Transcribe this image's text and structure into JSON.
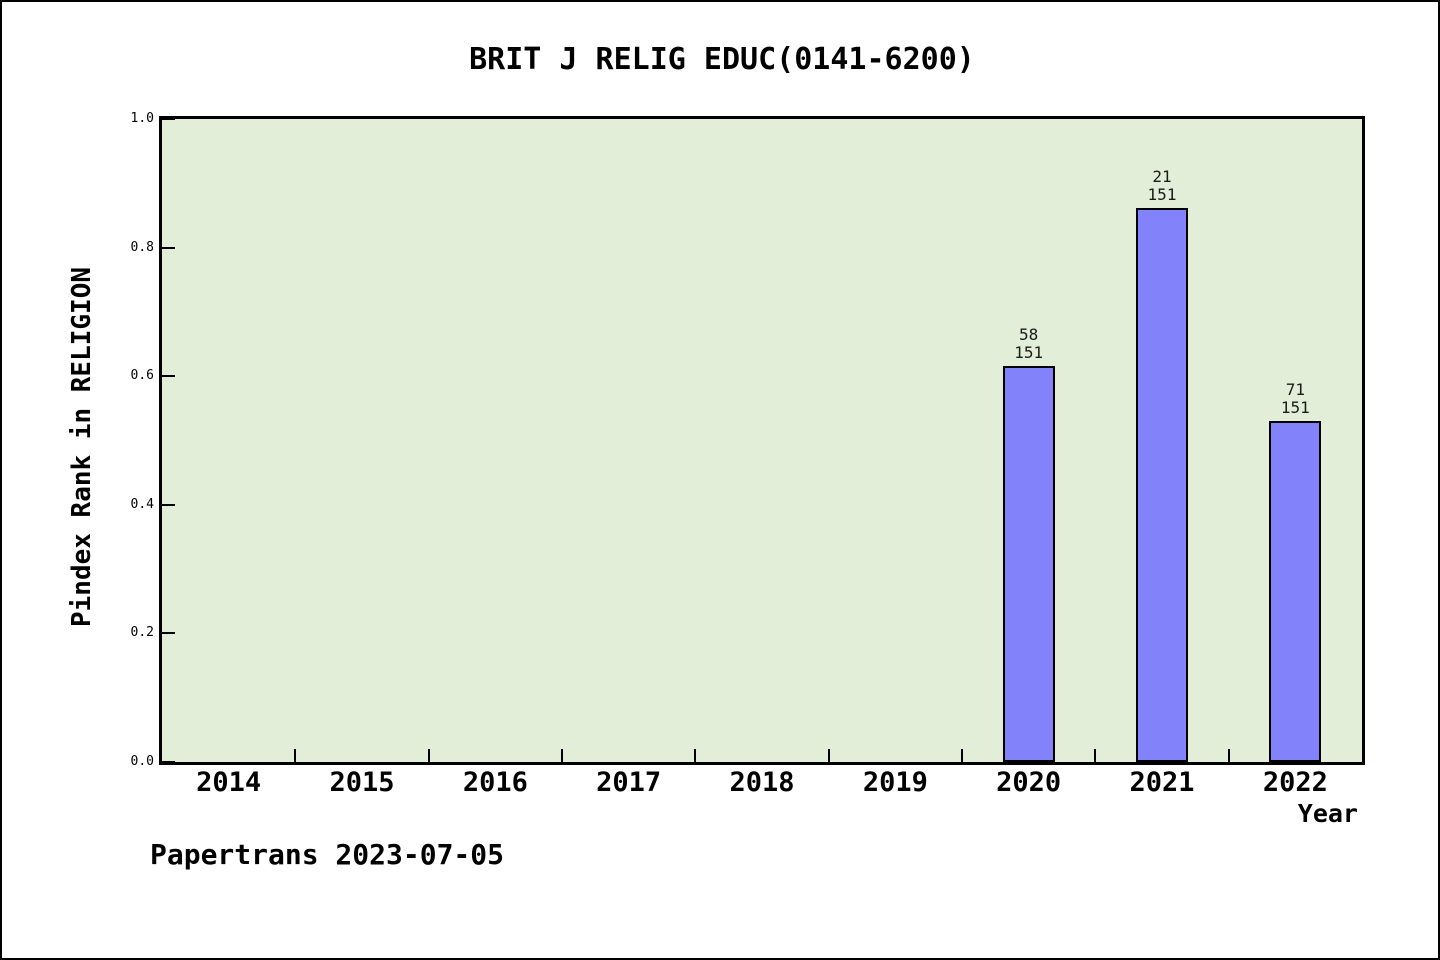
{
  "title": "BRIT J RELIG EDUC(0141-6200)",
  "footer": "Papertrans 2023-07-05",
  "chart_data": {
    "type": "bar",
    "title": "BRIT J RELIG EDUC(0141-6200)",
    "xlabel": "Year",
    "ylabel": "Pindex Rank in RELIGION",
    "categories": [
      "2014",
      "2015",
      "2016",
      "2017",
      "2018",
      "2019",
      "2020",
      "2021",
      "2022"
    ],
    "bars": [
      {
        "category": "2020",
        "rank": 58,
        "total": 151,
        "value": 0.616,
        "label_lines": [
          "58",
          "151"
        ]
      },
      {
        "category": "2021",
        "rank": 21,
        "total": 151,
        "value": 0.861,
        "label_lines": [
          "21",
          "151"
        ]
      },
      {
        "category": "2022",
        "rank": 71,
        "total": 151,
        "value": 0.53,
        "label_lines": [
          "71",
          "151"
        ]
      }
    ],
    "ylim": [
      0.0,
      1.0
    ],
    "yticks": [
      "0.0",
      "0.2",
      "0.4",
      "0.6",
      "0.8",
      "1.0"
    ],
    "grid": false,
    "legend": null,
    "plot_bg_color": "#e2eed8",
    "bar_color": "#8282fa",
    "bar_edge_color": "#000000",
    "frame_color": "#000000"
  }
}
